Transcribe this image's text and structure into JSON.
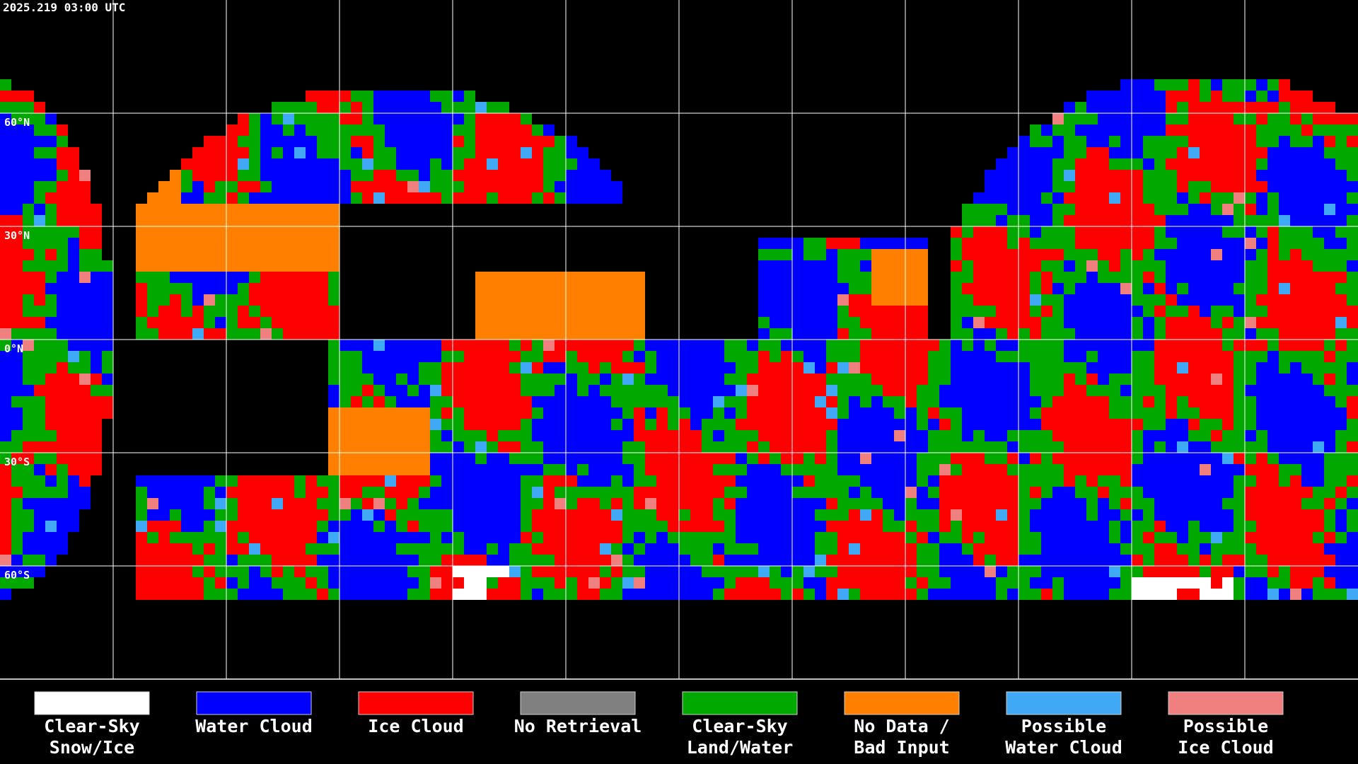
{
  "header": {
    "title": "2025.219 03:00 UTC"
  },
  "latitude_labels": [
    "60°N",
    "30°N",
    "0°N",
    "30°S",
    "60°S"
  ],
  "legend": [
    {
      "label": [
        "Clear-Sky",
        "Snow/Ice"
      ],
      "color": "#ffffff"
    },
    {
      "label": [
        "Water Cloud"
      ],
      "color": "#0000ff"
    },
    {
      "label": [
        "Ice Cloud"
      ],
      "color": "#ff0000"
    },
    {
      "label": [
        "No Retrieval"
      ],
      "color": "#808080"
    },
    {
      "label": [
        "Clear-Sky",
        "Land/Water"
      ],
      "color": "#00a800"
    },
    {
      "label": [
        "No Data /",
        "Bad Input"
      ],
      "color": "#ff8000"
    },
    {
      "label": [
        "Possible",
        "Water Cloud"
      ],
      "color": "#3fa9f5"
    },
    {
      "label": [
        "Possible",
        "Ice Cloud"
      ],
      "color": "#f08080"
    }
  ]
}
